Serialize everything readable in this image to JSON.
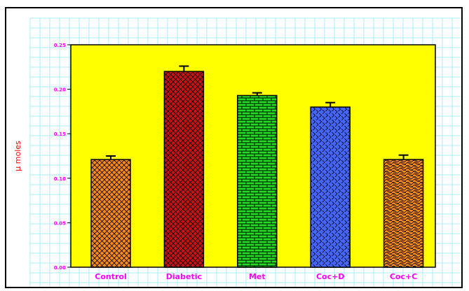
{
  "chart_data": {
    "type": "bar",
    "categories": [
      "Control",
      "Diabetic",
      "Met",
      "Coc+D",
      "Coc+C"
    ],
    "values": [
      0.121,
      0.22,
      0.193,
      0.18,
      0.121
    ],
    "errors": [
      0.004,
      0.006,
      0.003,
      0.005,
      0.005
    ],
    "bar_colors": [
      "#ff8c1a",
      "#cc1111",
      "#22dd22",
      "#4466ff",
      "#ff8c1a"
    ],
    "bar_patterns": [
      "crosshatch",
      "crosshatch",
      "brick",
      "zigzag",
      "wave"
    ],
    "ylabel": "μ moles",
    "ylim": [
      0,
      0.25
    ],
    "yticks": [
      "0.00",
      "0.05",
      "0.10",
      "0.15",
      "0.20",
      "0.25"
    ],
    "ytick_values": [
      0,
      0.05,
      0.1,
      0.15,
      0.2,
      0.25
    ],
    "grid": true,
    "plot_background": "#ffff00",
    "grid_color": "#aaeeff",
    "label_color": "#ff00ff",
    "ylabel_color": "#ff0000"
  }
}
